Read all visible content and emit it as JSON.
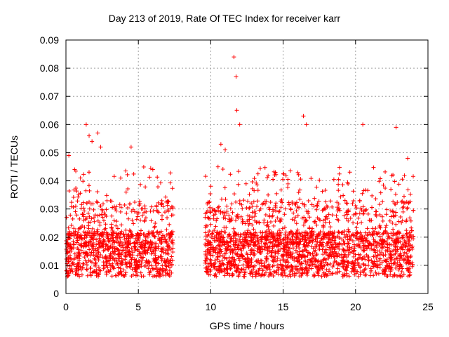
{
  "chart_data": {
    "type": "scatter",
    "title": "Day 213 of 2019, Rate Of TEC Index for receiver karr",
    "xlabel": "GPS time / hours",
    "ylabel": "ROTI / TECUs",
    "xlim": [
      0,
      25
    ],
    "ylim": [
      0,
      0.09
    ],
    "xticks": [
      0,
      5,
      10,
      15,
      20,
      25
    ],
    "yticks": [
      0,
      0.01,
      0.02,
      0.03,
      0.04,
      0.05,
      0.06,
      0.07,
      0.08,
      0.09
    ],
    "xtick_labels": [
      "0",
      "5",
      "10",
      "15",
      "20",
      "25"
    ],
    "ytick_labels": [
      "0",
      "0.01",
      "0.02",
      "0.03",
      "0.04",
      "0.05",
      "0.06",
      "0.07",
      "0.08",
      "0.09"
    ],
    "grid": true,
    "marker": "+",
    "color": "#ff0000",
    "series": [
      {
        "name": "ROTI",
        "segments": [
          [
            0.0,
            7.4
          ],
          [
            9.6,
            24.0
          ]
        ],
        "x": [
          0.2,
          0.6,
          1.0,
          1.4,
          1.6,
          1.8,
          2.2,
          2.4,
          4.5,
          6.0,
          10.7,
          11.0,
          11.6,
          11.75,
          11.8,
          12.0,
          16.4,
          16.6,
          20.5,
          22.8,
          23.6
        ],
        "y": [
          0.049,
          0.044,
          0.041,
          0.06,
          0.056,
          0.054,
          0.057,
          0.052,
          0.052,
          0.044,
          0.053,
          0.051,
          0.084,
          0.077,
          0.065,
          0.06,
          0.063,
          0.06,
          0.06,
          0.059,
          0.048
        ]
      }
    ]
  }
}
